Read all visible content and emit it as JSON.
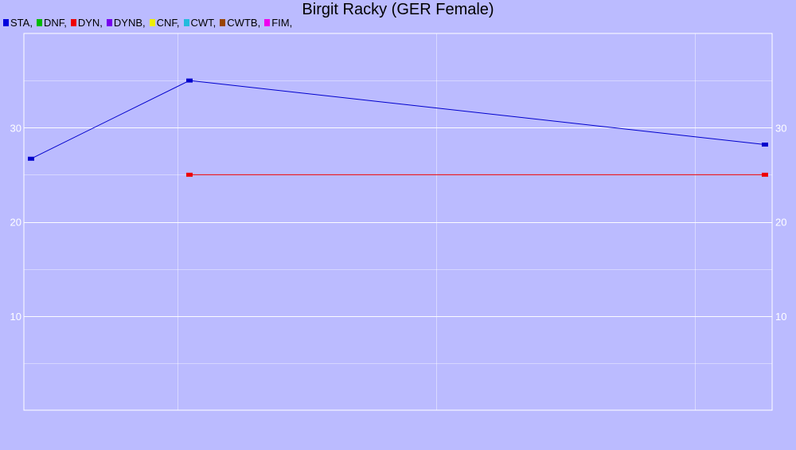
{
  "chart_data": {
    "type": "line",
    "title": "Birgit Racky (GER Female)",
    "xlabel": "",
    "ylabel": "",
    "ylim": [
      0,
      40
    ],
    "y_ticks": [
      10,
      20,
      30
    ],
    "grid": true,
    "legend_position": "top-left",
    "legend": [
      {
        "label": "STA,",
        "color": "#0000dd"
      },
      {
        "label": "DNF,",
        "color": "#00bb00"
      },
      {
        "label": "DYN,",
        "color": "#ee0000"
      },
      {
        "label": "DYNB,",
        "color": "#7700ee"
      },
      {
        "label": "CNF,",
        "color": "#eeee00"
      },
      {
        "label": "CWT,",
        "color": "#22bbdd"
      },
      {
        "label": "CWTB,",
        "color": "#994400"
      },
      {
        "label": "FIM,",
        "color": "#ee00ee"
      }
    ],
    "series": [
      {
        "legend_index": 0,
        "color": "#0000cc",
        "values": [
          26.7,
          35.0,
          28.2
        ]
      },
      {
        "legend_index": 2,
        "color": "#ee0000",
        "values": [
          null,
          25.0,
          25.0
        ]
      }
    ]
  },
  "colors": {
    "background": "#bbbbff",
    "grid": "#ffffff",
    "tick_text": "#ffffff"
  }
}
